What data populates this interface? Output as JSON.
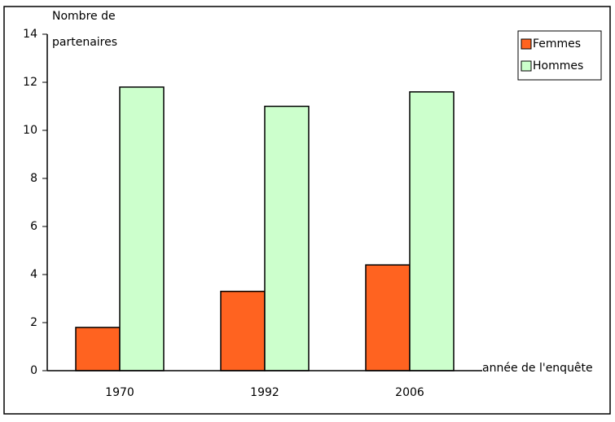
{
  "chart_data": {
    "type": "bar",
    "y_label": [
      "Nombre de",
      "partenaires"
    ],
    "x_label": "année de l'enquête",
    "categories": [
      "1970",
      "1992",
      "2006"
    ],
    "series": [
      {
        "name": "Femmes",
        "color": "#ff6320",
        "values": [
          1.8,
          3.3,
          4.4
        ]
      },
      {
        "name": "Hommes",
        "color": "#ccffcc",
        "values": [
          11.8,
          11.0,
          11.6
        ]
      }
    ],
    "ylim": [
      0,
      14
    ],
    "yticks": [
      0,
      2,
      4,
      6,
      8,
      10,
      12,
      14
    ],
    "legend": "top-right"
  }
}
